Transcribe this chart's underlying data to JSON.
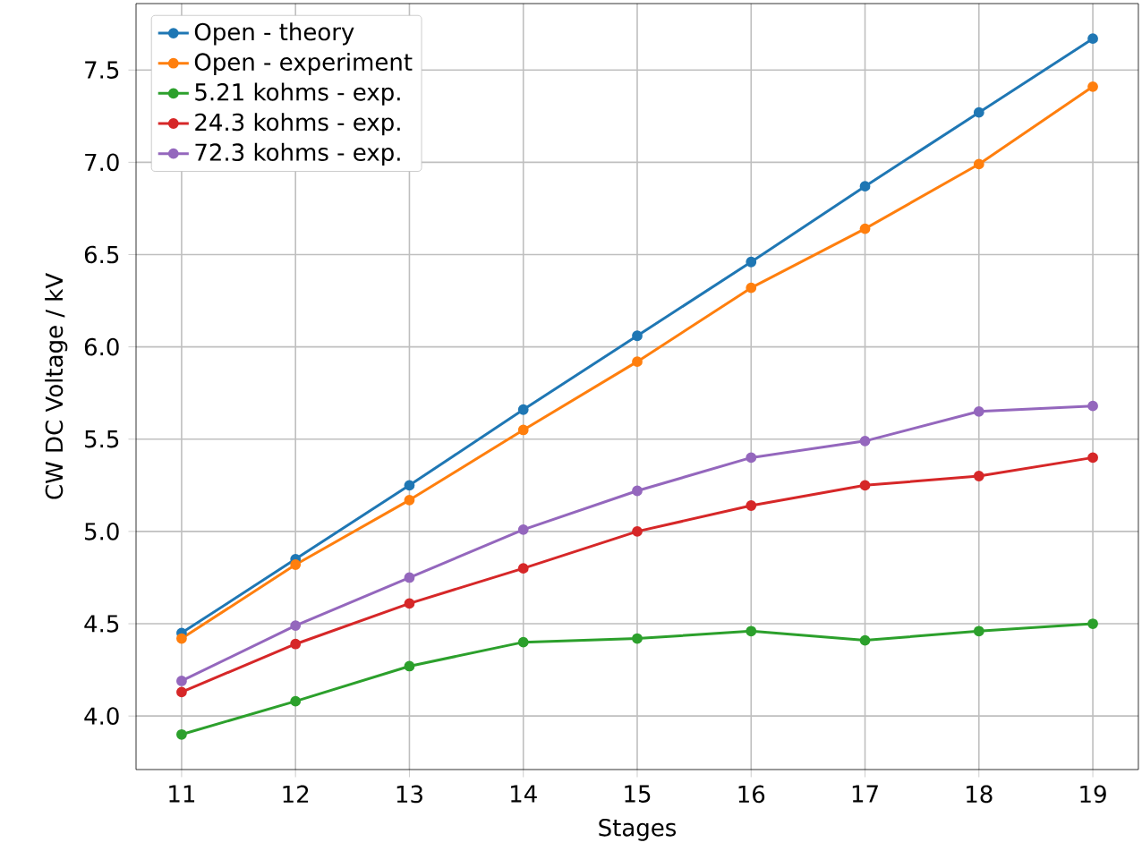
{
  "chart_data": {
    "type": "line",
    "xlabel": "Stages",
    "ylabel": "CW DC Voltage / kV",
    "x": [
      11,
      12,
      13,
      14,
      15,
      16,
      17,
      18,
      19
    ],
    "series": [
      {
        "name": "Open - theory",
        "color": "#1f77b4",
        "values": [
          4.45,
          4.85,
          5.25,
          5.66,
          6.06,
          6.46,
          6.87,
          7.27,
          7.67
        ]
      },
      {
        "name": "Open - experiment",
        "color": "#ff7f0e",
        "values": [
          4.42,
          4.82,
          5.17,
          5.55,
          5.92,
          6.32,
          6.64,
          6.99,
          7.41
        ]
      },
      {
        "name": "5.21 kohms - exp.",
        "color": "#2ca02c",
        "values": [
          3.9,
          4.08,
          4.27,
          4.4,
          4.42,
          4.46,
          4.41,
          4.46,
          4.5
        ]
      },
      {
        "name": "24.3 kohms - exp.",
        "color": "#d62728",
        "values": [
          4.13,
          4.39,
          4.61,
          4.8,
          5.0,
          5.14,
          5.25,
          5.3,
          5.4
        ]
      },
      {
        "name": "72.3 kohms - exp.",
        "color": "#9467bd",
        "values": [
          4.19,
          4.49,
          4.75,
          5.01,
          5.22,
          5.4,
          5.49,
          5.65,
          5.68
        ]
      }
    ],
    "xlim": [
      10.6,
      19.4
    ],
    "ylim": [
      3.71,
      7.86
    ],
    "xticks": [
      11,
      12,
      13,
      14,
      15,
      16,
      17,
      18,
      19
    ],
    "yticks": [
      {
        "value": 4.0,
        "label": "4.0"
      },
      {
        "value": 4.5,
        "label": "4.5"
      },
      {
        "value": 5.0,
        "label": "5.0"
      },
      {
        "value": 5.5,
        "label": "5.5"
      },
      {
        "value": 6.0,
        "label": "6.0"
      },
      {
        "value": 6.5,
        "label": "6.5"
      },
      {
        "value": 7.0,
        "label": "7.0"
      },
      {
        "value": 7.5,
        "label": "7.5"
      }
    ],
    "grid": true,
    "legend": "top left",
    "marker": "circle",
    "line_style": "solid"
  }
}
